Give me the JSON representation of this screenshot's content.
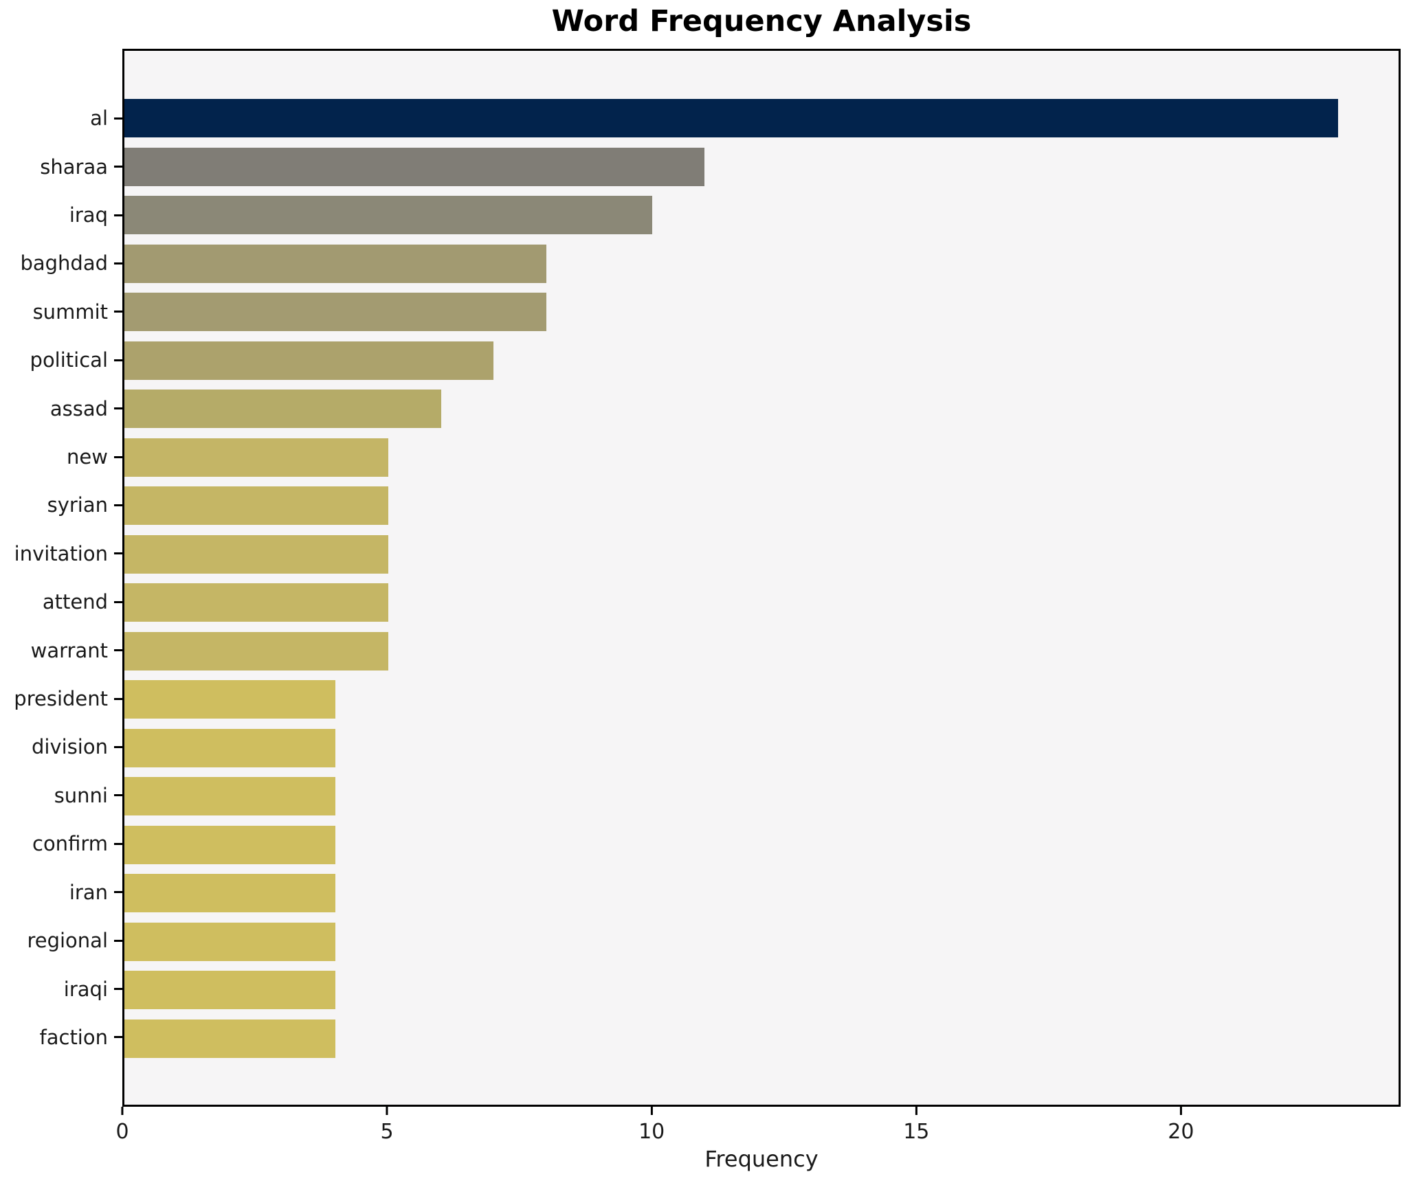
{
  "title": "Word Frequency Analysis",
  "style": {
    "figure_background": "#ffffff",
    "plot_background": "#f6f5f6",
    "spine_color": "#000000",
    "text_color": "#1a1a1a"
  },
  "chart_data": {
    "type": "bar",
    "orientation": "horizontal",
    "title": "Word Frequency Analysis",
    "xlabel": "Frequency",
    "ylabel": "",
    "grid": false,
    "legend": false,
    "xlim": [
      0,
      24.15
    ],
    "xticks": [
      0,
      5,
      10,
      15,
      20
    ],
    "categories": [
      "al",
      "sharaa",
      "iraq",
      "baghdad",
      "summit",
      "political",
      "assad",
      "new",
      "syrian",
      "invitation",
      "attend",
      "warrant",
      "president",
      "division",
      "sunni",
      "confirm",
      "iran",
      "regional",
      "iraqi",
      "faction"
    ],
    "values": [
      23,
      11,
      10,
      8,
      8,
      7,
      6,
      5,
      5,
      5,
      5,
      5,
      4,
      4,
      4,
      4,
      4,
      4,
      4,
      4
    ],
    "bar_colors": [
      "#02234c",
      "#807d76",
      "#8b8877",
      "#a29a71",
      "#a39b71",
      "#aca26c",
      "#b5ab68",
      "#c4b566",
      "#c5b665",
      "#c5b665",
      "#c5b665",
      "#c5b665",
      "#cfbe5f",
      "#cfbe5f",
      "#cfbe5f",
      "#cfbe5f",
      "#cfbe5f",
      "#cfbe5f",
      "#cfbe5f",
      "#cfbe5f"
    ],
    "bar_height_fraction": 0.8
  }
}
